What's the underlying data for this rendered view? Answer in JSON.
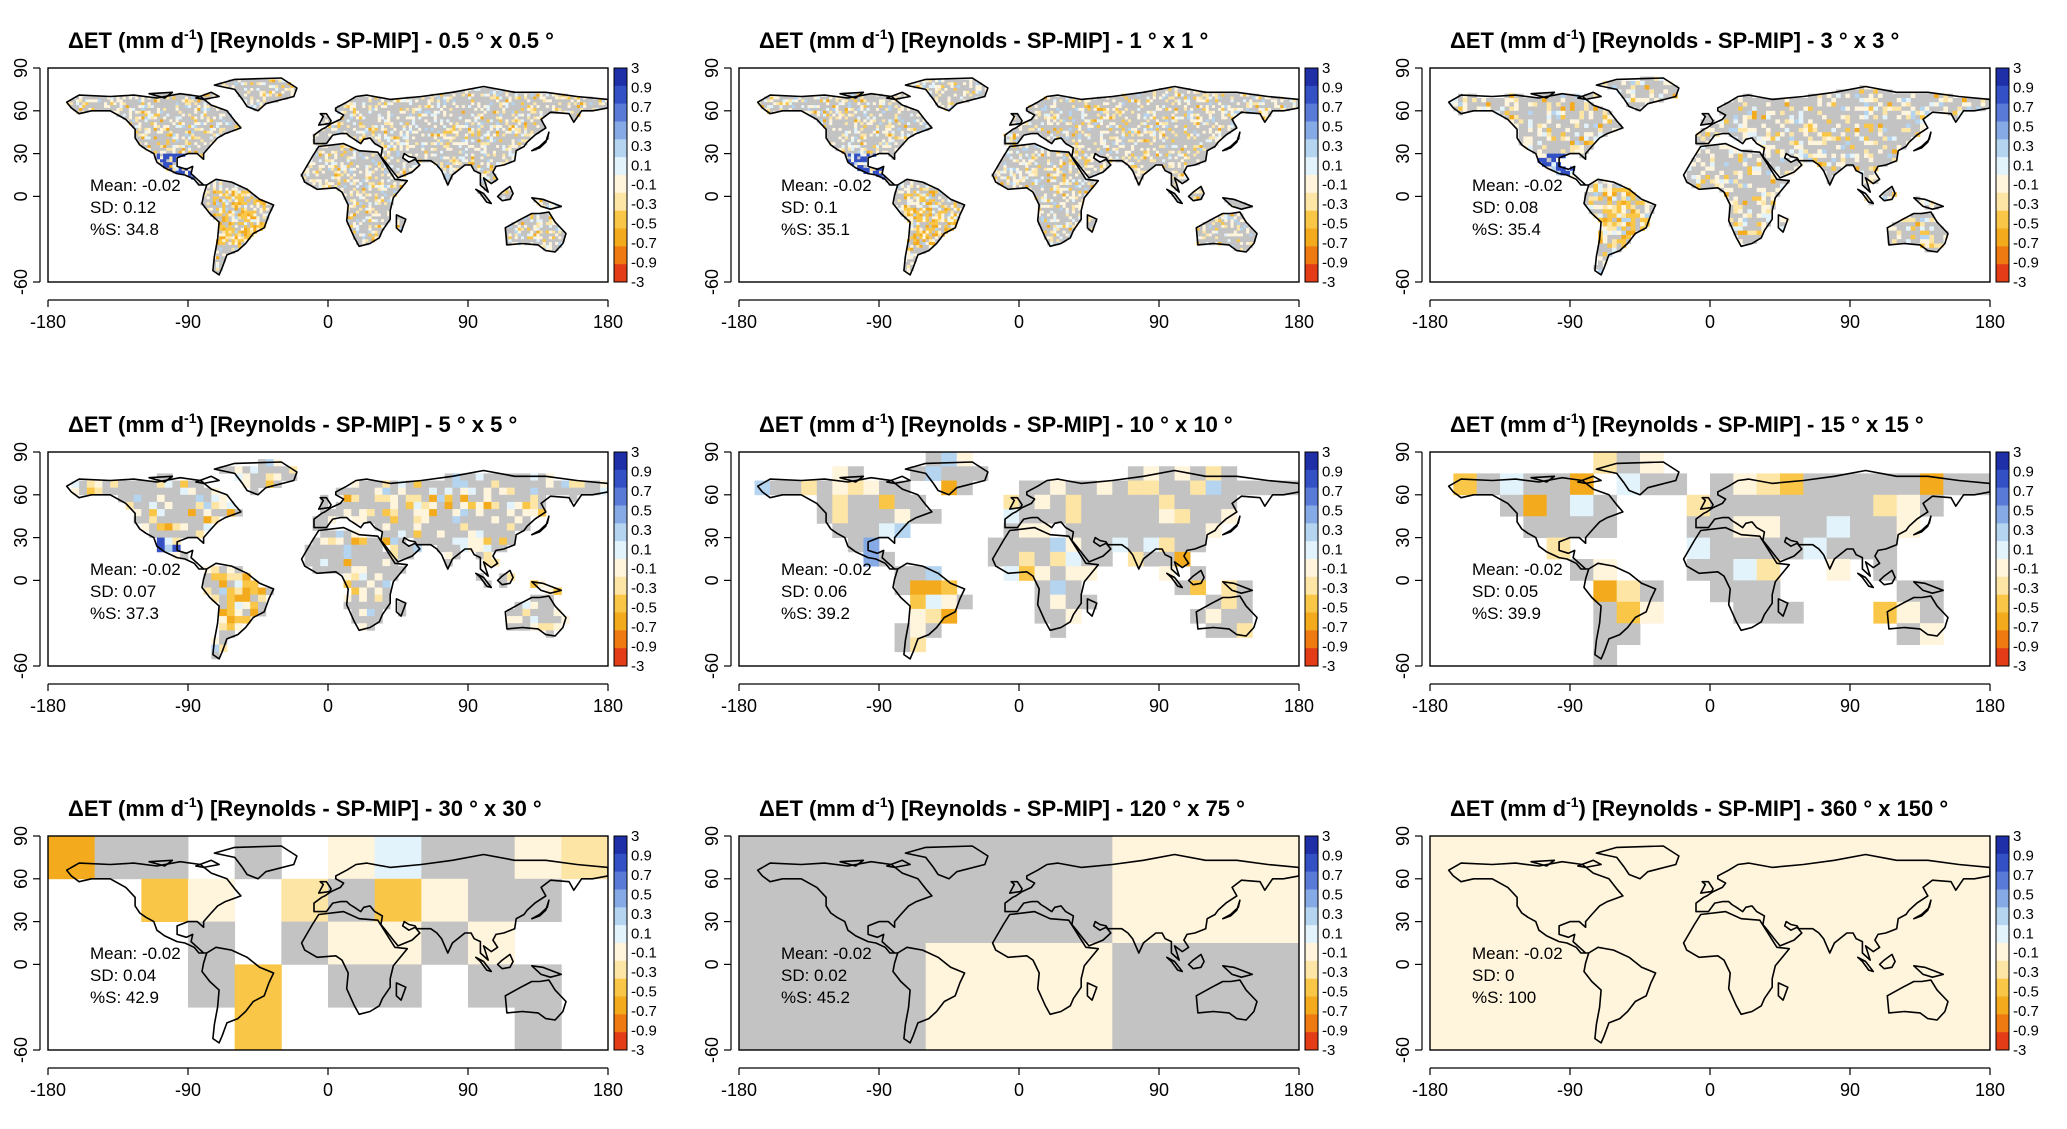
{
  "figure": {
    "title_prefix": "ΔET (mm d",
    "title_sup": "-1",
    "title_mid": ") [Reynolds - SP-MIP] - ",
    "x_ticks": [
      "-180",
      "-90",
      "0",
      "90",
      "180"
    ],
    "y_ticks": [
      "90",
      "60",
      "30",
      "0",
      "-60"
    ],
    "colorbar_labels": [
      "3",
      "0.9",
      "0.7",
      "0.5",
      "0.3",
      "0.1",
      "-0.1",
      "-0.3",
      "-0.5",
      "-0.7",
      "-0.9",
      "-3"
    ],
    "colorbar_colors": [
      "#1e2fa8",
      "#3350c4",
      "#5a7ad8",
      "#86aae6",
      "#b4d4f0",
      "#e2f3fb",
      "#fff4dc",
      "#fde5a6",
      "#f9c648",
      "#f3ab1d",
      "#ef7a12",
      "#e33c17"
    ],
    "stat_labels": {
      "mean": "Mean:",
      "sd": "SD:",
      "s": "%S:"
    }
  },
  "panels": [
    {
      "resolution": "0.5 °  x  0.5 °",
      "mean": "-0.02",
      "sd": "0.12",
      "s": "34.8"
    },
    {
      "resolution": "1 °  x  1 °",
      "mean": "-0.02",
      "sd": "0.1",
      "s": "35.1"
    },
    {
      "resolution": "3 °  x  3 °",
      "mean": "-0.02",
      "sd": "0.08",
      "s": "35.4"
    },
    {
      "resolution": "5 °  x  5 °",
      "mean": "-0.02",
      "sd": "0.07",
      "s": "37.3"
    },
    {
      "resolution": "10 °  x  10 °",
      "mean": "-0.02",
      "sd": "0.06",
      "s": "39.2"
    },
    {
      "resolution": "15 °  x  15 °",
      "mean": "-0.02",
      "sd": "0.05",
      "s": "39.9"
    },
    {
      "resolution": "30 °  x  30 °",
      "mean": "-0.02",
      "sd": "0.04",
      "s": "42.9"
    },
    {
      "resolution": "120 °  x  75 °",
      "mean": "-0.02",
      "sd": "0.02",
      "s": "45.2"
    },
    {
      "resolution": "360 °  x  150 °",
      "mean": "-0.02",
      "sd": "0",
      "s": "100"
    }
  ]
}
